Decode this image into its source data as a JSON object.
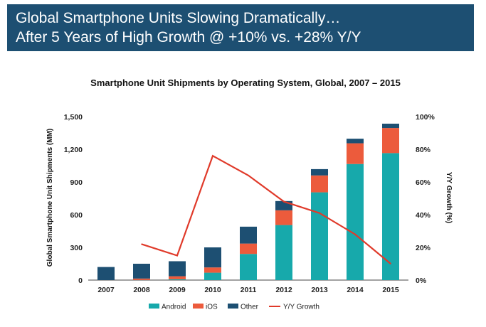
{
  "header": {
    "line1": "Global Smartphone Units Slowing Dramatically…",
    "line2": "After 5 Years of High Growth @ +10% vs. +28% Y/Y"
  },
  "chart_data": {
    "type": "bar",
    "stacked": true,
    "title": "Smartphone Unit Shipments by Operating System, Global, 2007 – 2015",
    "ylabel": "Global Smartphone Unit Shipments (MM)",
    "y2label": "Y/Y Growth (%)",
    "categories": [
      "2007",
      "2008",
      "2009",
      "2010",
      "2011",
      "2012",
      "2013",
      "2014",
      "2015"
    ],
    "ylim": [
      0,
      1500
    ],
    "yticks": [
      "0",
      "300",
      "600",
      "900",
      "1,200",
      "1,500"
    ],
    "y2lim": [
      0,
      100
    ],
    "y2ticks": [
      "0%",
      "20%",
      "40%",
      "60%",
      "80%",
      "100%"
    ],
    "series": [
      {
        "name": "Android",
        "color": "#17a9ab",
        "values": [
          0,
          1,
          7,
          68,
          240,
          505,
          805,
          1065,
          1165
        ]
      },
      {
        "name": "iOS",
        "color": "#ec5b3c",
        "values": [
          0,
          13,
          28,
          48,
          95,
          135,
          155,
          190,
          230
        ]
      },
      {
        "name": "Other",
        "color": "#1d4f72",
        "values": [
          120,
          136,
          138,
          184,
          155,
          85,
          58,
          42,
          40
        ]
      }
    ],
    "line_series": {
      "name": "Y/Y Growth",
      "color": "#e03a2a",
      "values": [
        null,
        22,
        15,
        76,
        64,
        48,
        41,
        28,
        10
      ]
    },
    "legend": {
      "position": "bottom"
    },
    "grid": false
  }
}
